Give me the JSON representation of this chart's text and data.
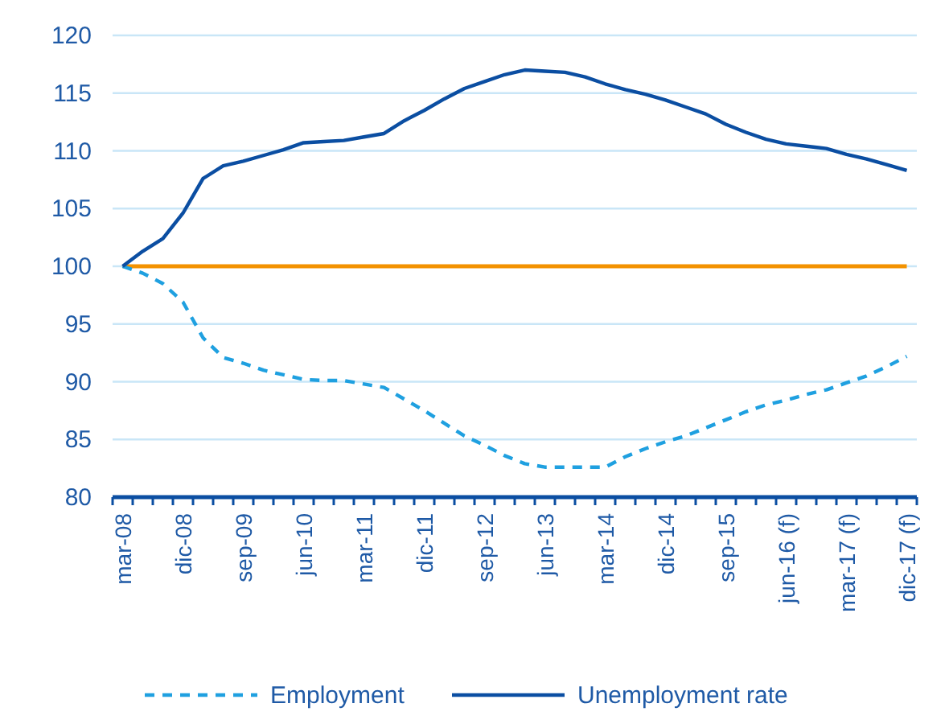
{
  "chart_data": {
    "type": "line",
    "categories": [
      "mar-08",
      null,
      null,
      "dic-08",
      null,
      null,
      "sep-09",
      null,
      null,
      "jun-10",
      null,
      null,
      "mar-11",
      null,
      null,
      "dic-11",
      null,
      null,
      "sep-12",
      null,
      null,
      "jun-13",
      null,
      null,
      "mar-14",
      null,
      null,
      "dic-14",
      null,
      null,
      "sep-15",
      null,
      null,
      "jun-16 (f)",
      null,
      null,
      "mar-17 (f)",
      null,
      null,
      "dic-17 (f)"
    ],
    "series": [
      {
        "name": "Employment",
        "color": "#1fa0e0",
        "line_style": "dashed",
        "values": [
          100,
          99.4,
          98.5,
          96.9,
          93.8,
          92.1,
          91.6,
          91.0,
          90.6,
          90.2,
          90.1,
          90.1,
          89.8,
          89.5,
          88.5,
          87.5,
          86.4,
          85.3,
          84.5,
          83.6,
          82.9,
          82.6,
          82.6,
          82.6,
          82.6,
          83.5,
          84.2,
          84.8,
          85.3,
          86.0,
          86.7,
          87.4,
          88.0,
          88.4,
          88.9,
          89.3,
          89.9,
          90.5,
          91.3,
          92.2
        ]
      },
      {
        "name": "Unemployment rate",
        "color": "#0b4ea2",
        "line_style": "solid",
        "values": [
          100,
          101.3,
          102.4,
          104.6,
          107.6,
          108.7,
          109.1,
          109.6,
          110.1,
          110.7,
          110.8,
          110.9,
          111.2,
          111.5,
          112.6,
          113.5,
          114.5,
          115.4,
          116.0,
          116.6,
          117.0,
          116.9,
          116.8,
          116.4,
          115.8,
          115.3,
          114.9,
          114.4,
          113.8,
          113.2,
          112.3,
          111.6,
          111.0,
          110.6,
          110.4,
          110.2,
          109.7,
          109.3,
          108.8,
          108.3
        ]
      }
    ],
    "ref_lines": [
      {
        "axis": "y",
        "value": 100,
        "color": "#f39200"
      }
    ],
    "ylim": [
      80,
      120
    ],
    "yticks": [
      80,
      85,
      90,
      95,
      100,
      105,
      110,
      115,
      120
    ],
    "grid": "y",
    "legend": "bottom",
    "marker": "none"
  }
}
